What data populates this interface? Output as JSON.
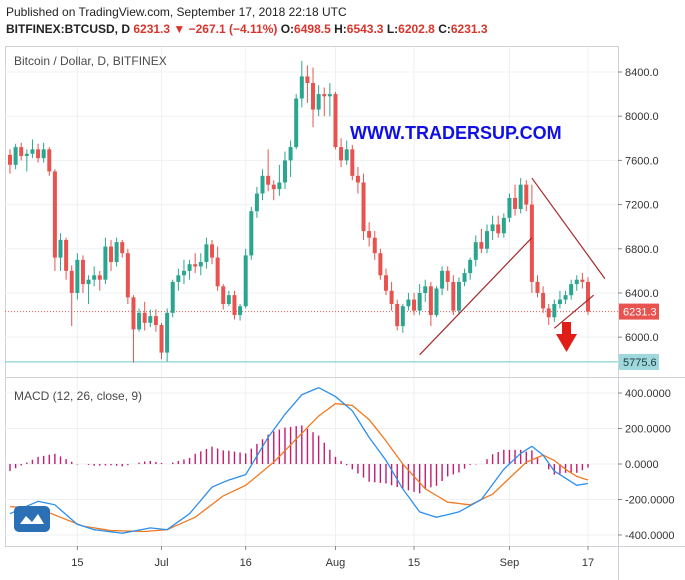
{
  "header": {
    "published": "Published on TradingView.com, September 17, 2018 22:18 UTC",
    "symbol": "BITFINEX:BTCUSD, D",
    "last": "6231.3",
    "change": "−267.1 (−4.11%)",
    "o_label": "O:",
    "o_value": "6498.5",
    "h_label": "H:",
    "h_value": "6543.3",
    "l_label": "L:",
    "l_value": "6202.8",
    "c_label": "C:",
    "c_value": "6231.3"
  },
  "chart_data": [
    {
      "type": "candlestick",
      "title": "Bitcoin / Dollar, D, BITFINEX",
      "watermark": "WWW.TRADERSUP.COM",
      "ylim": [
        5700,
        8600
      ],
      "y_ticks": [
        "8400.0",
        "8000.0",
        "7600.0",
        "7200.0",
        "6800.0",
        "6400.0",
        "6000.0"
      ],
      "y_tick_values": [
        8400,
        8000,
        7600,
        7200,
        6800,
        6400,
        6000
      ],
      "x_ticks": [
        "15",
        "Jul",
        "16",
        "Aug",
        "15",
        "Sep",
        "17"
      ],
      "x_tick_index": [
        12,
        27,
        42,
        58,
        72,
        89,
        103
      ],
      "last_price_label": "6231.3",
      "last_price": 6231.3,
      "support_label": "5775.6",
      "support": 5775.6,
      "colors": {
        "up": "#2aa58f",
        "down": "#e8534f",
        "trend": "#a52a2a",
        "arrow": "#e11d17",
        "watermark": "#1010e6",
        "support_line": "#6cc8cc"
      },
      "ohlc": [
        [
          7650,
          7700,
          7480,
          7560
        ],
        [
          7560,
          7750,
          7520,
          7720
        ],
        [
          7720,
          7760,
          7600,
          7640
        ],
        [
          7640,
          7700,
          7500,
          7660
        ],
        [
          7660,
          7790,
          7620,
          7700
        ],
        [
          7700,
          7750,
          7580,
          7620
        ],
        [
          7620,
          7760,
          7580,
          7700
        ],
        [
          7700,
          7720,
          7460,
          7500
        ],
        [
          7500,
          7520,
          6600,
          6720
        ],
        [
          6720,
          6940,
          6600,
          6880
        ],
        [
          6880,
          6900,
          6520,
          6600
        ],
        [
          6600,
          6650,
          6100,
          6400
        ],
        [
          6400,
          6760,
          6340,
          6700
        ],
        [
          6700,
          6740,
          6400,
          6480
        ],
        [
          6480,
          6560,
          6300,
          6520
        ],
        [
          6520,
          6640,
          6460,
          6560
        ],
        [
          6560,
          6600,
          6420,
          6520
        ],
        [
          6520,
          6900,
          6480,
          6820
        ],
        [
          6820,
          6880,
          6600,
          6680
        ],
        [
          6680,
          6900,
          6640,
          6860
        ],
        [
          6860,
          6880,
          6720,
          6760
        ],
        [
          6760,
          6800,
          6300,
          6360
        ],
        [
          6360,
          6380,
          5770,
          6070
        ],
        [
          6070,
          6260,
          6050,
          6220
        ],
        [
          6220,
          6320,
          6060,
          6130
        ],
        [
          6130,
          6250,
          6090,
          6190
        ],
        [
          6190,
          6250,
          6050,
          6110
        ],
        [
          6110,
          6130,
          5800,
          5860
        ],
        [
          5860,
          6260,
          5780,
          6220
        ],
        [
          6220,
          6520,
          6180,
          6500
        ],
        [
          6500,
          6620,
          6420,
          6560
        ],
        [
          6560,
          6700,
          6480,
          6600
        ],
        [
          6600,
          6700,
          6520,
          6660
        ],
        [
          6660,
          6760,
          6580,
          6640
        ],
        [
          6640,
          6760,
          6560,
          6680
        ],
        [
          6680,
          6900,
          6620,
          6840
        ],
        [
          6840,
          6880,
          6660,
          6720
        ],
        [
          6720,
          6820,
          6420,
          6460
        ],
        [
          6460,
          6480,
          6250,
          6300
        ],
        [
          6300,
          6420,
          6280,
          6380
        ],
        [
          6380,
          6420,
          6160,
          6200
        ],
        [
          6200,
          6300,
          6150,
          6280
        ],
        [
          6280,
          6800,
          6260,
          6740
        ],
        [
          6740,
          7180,
          6700,
          7140
        ],
        [
          7140,
          7360,
          7080,
          7300
        ],
        [
          7300,
          7520,
          7240,
          7460
        ],
        [
          7460,
          7700,
          7320,
          7380
        ],
        [
          7380,
          7420,
          7240,
          7340
        ],
        [
          7340,
          7560,
          7280,
          7400
        ],
        [
          7400,
          7680,
          7340,
          7600
        ],
        [
          7600,
          7780,
          7450,
          7720
        ],
        [
          7720,
          8200,
          7700,
          8160
        ],
        [
          8160,
          8500,
          8080,
          8360
        ],
        [
          8360,
          8460,
          8120,
          8300
        ],
        [
          8300,
          8440,
          7900,
          8060
        ],
        [
          8060,
          8280,
          8000,
          8200
        ],
        [
          8200,
          8260,
          8000,
          8180
        ],
        [
          8180,
          8300,
          8000,
          8200
        ],
        [
          8200,
          8220,
          7700,
          7720
        ],
        [
          7720,
          7800,
          7540,
          7600
        ],
        [
          7600,
          7780,
          7560,
          7700
        ],
        [
          7700,
          7740,
          7420,
          7460
        ],
        [
          7460,
          7540,
          7300,
          7400
        ],
        [
          7400,
          7480,
          6880,
          6960
        ],
        [
          6960,
          7040,
          6820,
          6900
        ],
        [
          6900,
          6960,
          6700,
          6760
        ],
        [
          6760,
          6800,
          6520,
          6560
        ],
        [
          6560,
          6620,
          6380,
          6420
        ],
        [
          6420,
          6500,
          6240,
          6300
        ],
        [
          6300,
          6340,
          6060,
          6100
        ],
        [
          6100,
          6300,
          6040,
          6280
        ],
        [
          6280,
          6400,
          6240,
          6340
        ],
        [
          6340,
          6400,
          6200,
          6240
        ],
        [
          6240,
          6480,
          6200,
          6400
        ],
        [
          6400,
          6520,
          6320,
          6460
        ],
        [
          6460,
          6500,
          6100,
          6200
        ],
        [
          6200,
          6460,
          6180,
          6440
        ],
        [
          6440,
          6640,
          6380,
          6600
        ],
        [
          6600,
          6640,
          6420,
          6500
        ],
        [
          6500,
          6560,
          6200,
          6240
        ],
        [
          6240,
          6540,
          6200,
          6500
        ],
        [
          6500,
          6620,
          6460,
          6580
        ],
        [
          6580,
          6720,
          6520,
          6700
        ],
        [
          6700,
          6920,
          6640,
          6860
        ],
        [
          6860,
          6980,
          6760,
          6800
        ],
        [
          6800,
          7020,
          6760,
          6960
        ],
        [
          6960,
          7100,
          6880,
          7020
        ],
        [
          7020,
          7100,
          6900,
          6940
        ],
        [
          6940,
          7120,
          6900,
          7080
        ],
        [
          7080,
          7300,
          7040,
          7260
        ],
        [
          7260,
          7380,
          7100,
          7160
        ],
        [
          7160,
          7440,
          7120,
          7380
        ],
        [
          7380,
          7420,
          7140,
          7200
        ],
        [
          7200,
          7380,
          6400,
          6500
        ],
        [
          6500,
          6560,
          6360,
          6400
        ],
        [
          6400,
          6460,
          6220,
          6260
        ],
        [
          6260,
          6300,
          6110,
          6180
        ],
        [
          6180,
          6340,
          6140,
          6300
        ],
        [
          6300,
          6420,
          6260,
          6340
        ],
        [
          6340,
          6420,
          6300,
          6380
        ],
        [
          6380,
          6520,
          6340,
          6480
        ],
        [
          6480,
          6560,
          6420,
          6520
        ],
        [
          6520,
          6580,
          6440,
          6500
        ],
        [
          6500,
          6543,
          6202,
          6231
        ]
      ]
    },
    {
      "type": "macd",
      "title": "MACD (12, 26, close, 9)",
      "ylim": [
        -450,
        450
      ],
      "y_ticks": [
        "400.0000",
        "200.0000",
        "0.0000",
        "-200.0000",
        "-400.0000"
      ],
      "y_tick_values": [
        400,
        200,
        0,
        -200,
        -400
      ],
      "colors": {
        "macd": "#2c8ff0",
        "signal": "#f07a22",
        "histogram": "#c31b6f"
      },
      "macd_key": [
        [
          0,
          -280
        ],
        [
          5,
          -210
        ],
        [
          8,
          -230
        ],
        [
          12,
          -340
        ],
        [
          15,
          -370
        ],
        [
          20,
          -390
        ],
        [
          25,
          -360
        ],
        [
          28,
          -370
        ],
        [
          32,
          -280
        ],
        [
          36,
          -130
        ],
        [
          39,
          -90
        ],
        [
          42,
          -60
        ],
        [
          46,
          150
        ],
        [
          49,
          280
        ],
        [
          52,
          390
        ],
        [
          55,
          430
        ],
        [
          58,
          380
        ],
        [
          61,
          300
        ],
        [
          64,
          150
        ],
        [
          67,
          20
        ],
        [
          70,
          -140
        ],
        [
          73,
          -270
        ],
        [
          76,
          -300
        ],
        [
          80,
          -270
        ],
        [
          84,
          -200
        ],
        [
          88,
          -30
        ],
        [
          91,
          60
        ],
        [
          93,
          100
        ],
        [
          95,
          50
        ],
        [
          97,
          -40
        ],
        [
          99,
          -80
        ],
        [
          101,
          -120
        ],
        [
          103,
          -110
        ]
      ],
      "signal_key": [
        [
          0,
          -240
        ],
        [
          5,
          -250
        ],
        [
          9,
          -300
        ],
        [
          13,
          -350
        ],
        [
          18,
          -375
        ],
        [
          24,
          -380
        ],
        [
          28,
          -370
        ],
        [
          33,
          -300
        ],
        [
          38,
          -180
        ],
        [
          42,
          -120
        ],
        [
          47,
          10
        ],
        [
          51,
          140
        ],
        [
          55,
          270
        ],
        [
          58,
          340
        ],
        [
          61,
          330
        ],
        [
          64,
          250
        ],
        [
          67,
          130
        ],
        [
          70,
          0
        ],
        [
          74,
          -140
        ],
        [
          78,
          -215
        ],
        [
          82,
          -230
        ],
        [
          86,
          -170
        ],
        [
          89,
          -80
        ],
        [
          92,
          10
        ],
        [
          95,
          50
        ],
        [
          97,
          20
        ],
        [
          99,
          -30
        ],
        [
          101,
          -70
        ],
        [
          103,
          -90
        ]
      ]
    }
  ]
}
